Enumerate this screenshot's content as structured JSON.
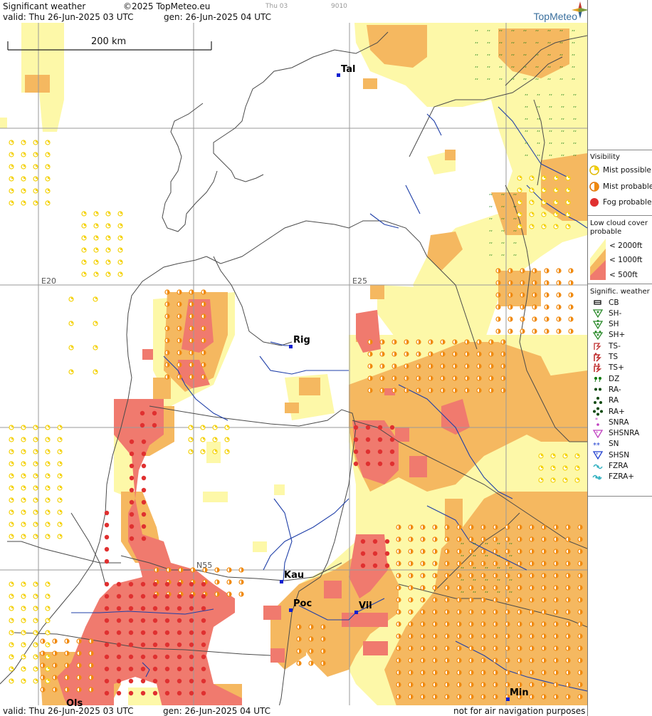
{
  "header": {
    "title": "Significant weather",
    "copyright": "©2025 TopMeteo.eu",
    "small_day": "Thu 03",
    "small_code": "9010",
    "valid": "valid:  Thu   26-Jun-2025  03 UTC",
    "gen": "gen: 26-Jun-2025 04 UTC",
    "brand": "TopMeteo"
  },
  "footer": {
    "valid": "valid:  Thu   26-Jun-2025  03 UTC",
    "gen": "gen: 26-Jun-2025 04 UTC",
    "disclaimer": "not for air navigation purposes"
  },
  "scale_bar": {
    "label": "200 km"
  },
  "grid_labels": {
    "lon_20": "E20",
    "lon_25": "E25",
    "lat_55": "N55"
  },
  "cities": [
    {
      "name": "Tal"
    },
    {
      "name": "Rig"
    },
    {
      "name": "Kau"
    },
    {
      "name": "Poc"
    },
    {
      "name": "Vil"
    },
    {
      "name": "Ols"
    },
    {
      "name": "Min"
    }
  ],
  "legend": {
    "visibility_title": "Visibility",
    "visibility": [
      "Mist possible",
      "Mist probable",
      "Fog probable"
    ],
    "cloud_title_1": "Low cloud cover",
    "cloud_title_2": "probable",
    "cloud": [
      "< 2000ft",
      "< 1000ft",
      "<   500ft"
    ],
    "sig_title": "Signific. weather",
    "sig": [
      "CB",
      "SH-",
      "SH",
      "SH+",
      "TS-",
      "TS",
      "TS+",
      "DZ",
      "RA-",
      "RA",
      "RA+",
      "SNRA",
      "SHSNRA",
      "SN",
      "SHSN",
      "FZRA",
      "FZRA+"
    ]
  },
  "colors": {
    "cloud_2000": "#fdf8a8",
    "cloud_1000": "#f5b860",
    "cloud_500": "#f07a6e",
    "mist_possible": "#f4d20a",
    "mist_probable": "#f08a10",
    "fog": "#e03030",
    "drizzle": "#0e7a0e",
    "border": "#4a4a4a",
    "river": "#1f3fa8",
    "grid": "#9a9a9a",
    "brand": "#3a6f9d"
  }
}
